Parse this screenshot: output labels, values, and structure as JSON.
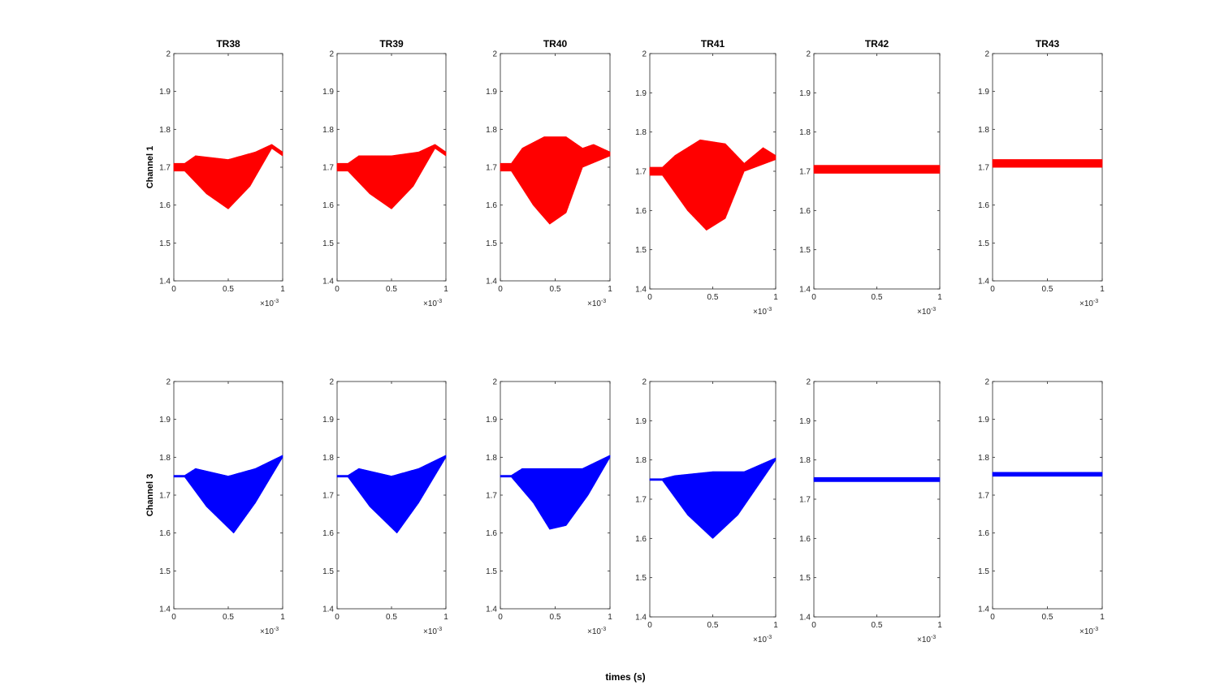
{
  "figure": {
    "xlabel": "times (s)",
    "row_labels": [
      "Channel 1",
      "Channel 3"
    ],
    "x_exponent_label": "×10",
    "x_exponent_power": "-3"
  },
  "chart_data": [
    {
      "type": "line",
      "title": "TR38",
      "ylabel": "Channel 1",
      "xlim": [
        0,
        1
      ],
      "ylim": [
        1.4,
        2
      ],
      "x_scale": "1e-3",
      "yticks": [
        1.4,
        1.5,
        1.6,
        1.7,
        1.8,
        1.9,
        2
      ],
      "xticks": [
        0,
        0.5,
        1
      ],
      "series": [
        {
          "color": "#ff0000",
          "baseline": [
            [
              0,
              1.7
            ],
            [
              0.1,
              1.7
            ],
            [
              0.35,
              1.68
            ],
            [
              0.5,
              1.66
            ],
            [
              0.75,
              1.7
            ],
            [
              0.9,
              1.76
            ],
            [
              1,
              1.73
            ]
          ],
          "upper": [
            [
              0,
              1.71
            ],
            [
              0.1,
              1.71
            ],
            [
              0.2,
              1.73
            ],
            [
              0.5,
              1.72
            ],
            [
              0.75,
              1.74
            ],
            [
              0.9,
              1.76
            ],
            [
              1,
              1.74
            ]
          ],
          "lower": [
            [
              0,
              1.69
            ],
            [
              0.1,
              1.69
            ],
            [
              0.3,
              1.63
            ],
            [
              0.5,
              1.59
            ],
            [
              0.7,
              1.65
            ],
            [
              0.9,
              1.75
            ],
            [
              1,
              1.73
            ]
          ]
        }
      ]
    },
    {
      "type": "line",
      "title": "TR39",
      "xlim": [
        0,
        1
      ],
      "ylim": [
        1.4,
        2
      ],
      "x_scale": "1e-3",
      "yticks": [
        1.4,
        1.5,
        1.6,
        1.7,
        1.8,
        1.9,
        2
      ],
      "xticks": [
        0,
        0.5,
        1
      ],
      "series": [
        {
          "color": "#ff0000",
          "baseline": [
            [
              0,
              1.7
            ],
            [
              0.1,
              1.7
            ],
            [
              0.35,
              1.68
            ],
            [
              0.5,
              1.66
            ],
            [
              0.75,
              1.7
            ],
            [
              0.9,
              1.76
            ],
            [
              1,
              1.73
            ]
          ],
          "upper": [
            [
              0,
              1.71
            ],
            [
              0.1,
              1.71
            ],
            [
              0.2,
              1.73
            ],
            [
              0.5,
              1.73
            ],
            [
              0.75,
              1.74
            ],
            [
              0.9,
              1.76
            ],
            [
              1,
              1.74
            ]
          ],
          "lower": [
            [
              0,
              1.69
            ],
            [
              0.1,
              1.69
            ],
            [
              0.3,
              1.63
            ],
            [
              0.5,
              1.59
            ],
            [
              0.7,
              1.65
            ],
            [
              0.9,
              1.75
            ],
            [
              1,
              1.73
            ]
          ]
        }
      ]
    },
    {
      "type": "line",
      "title": "TR40",
      "xlim": [
        0,
        1
      ],
      "ylim": [
        1.4,
        2
      ],
      "x_scale": "1e-3",
      "yticks": [
        1.4,
        1.5,
        1.6,
        1.7,
        1.8,
        1.9,
        2
      ],
      "xticks": [
        0,
        0.5,
        1
      ],
      "series": [
        {
          "color": "#ff0000",
          "baseline": [
            [
              0,
              1.7
            ],
            [
              0.1,
              1.7
            ],
            [
              0.35,
              1.66
            ],
            [
              0.5,
              1.66
            ],
            [
              0.65,
              1.72
            ],
            [
              0.8,
              1.75
            ],
            [
              1,
              1.73
            ]
          ],
          "upper": [
            [
              0,
              1.71
            ],
            [
              0.1,
              1.71
            ],
            [
              0.2,
              1.75
            ],
            [
              0.4,
              1.78
            ],
            [
              0.6,
              1.78
            ],
            [
              0.75,
              1.75
            ],
            [
              0.85,
              1.76
            ],
            [
              1,
              1.74
            ]
          ],
          "lower": [
            [
              0,
              1.69
            ],
            [
              0.1,
              1.69
            ],
            [
              0.3,
              1.6
            ],
            [
              0.45,
              1.55
            ],
            [
              0.6,
              1.58
            ],
            [
              0.75,
              1.7
            ],
            [
              1,
              1.73
            ]
          ]
        }
      ]
    },
    {
      "type": "line",
      "title": "TR41",
      "xlim": [
        0,
        1
      ],
      "ylim": [
        1.4,
        2
      ],
      "x_scale": "1e-3",
      "yticks": [
        1.4,
        1.5,
        1.6,
        1.7,
        1.8,
        1.9,
        2
      ],
      "xticks": [
        0,
        0.5,
        1
      ],
      "series": [
        {
          "color": "#ff0000",
          "baseline": [
            [
              0,
              1.7
            ],
            [
              0.1,
              1.7
            ],
            [
              0.35,
              1.66
            ],
            [
              0.5,
              1.65
            ],
            [
              0.65,
              1.71
            ],
            [
              0.85,
              1.75
            ],
            [
              1,
              1.73
            ]
          ],
          "upper": [
            [
              0,
              1.71
            ],
            [
              0.1,
              1.71
            ],
            [
              0.2,
              1.74
            ],
            [
              0.4,
              1.78
            ],
            [
              0.6,
              1.77
            ],
            [
              0.75,
              1.72
            ],
            [
              0.9,
              1.76
            ],
            [
              1,
              1.74
            ]
          ],
          "lower": [
            [
              0,
              1.69
            ],
            [
              0.1,
              1.69
            ],
            [
              0.3,
              1.6
            ],
            [
              0.45,
              1.55
            ],
            [
              0.6,
              1.58
            ],
            [
              0.75,
              1.7
            ],
            [
              1,
              1.73
            ]
          ]
        }
      ]
    },
    {
      "type": "line",
      "title": "TR42",
      "xlim": [
        0,
        1
      ],
      "ylim": [
        1.4,
        2
      ],
      "x_scale": "1e-3",
      "yticks": [
        1.4,
        1.5,
        1.6,
        1.7,
        1.8,
        1.9,
        2
      ],
      "xticks": [
        0,
        0.5,
        1
      ],
      "series": [
        {
          "color": "#ff0000",
          "baseline": [
            [
              0,
              1.705
            ],
            [
              1,
              1.705
            ]
          ],
          "upper": [
            [
              0,
              1.715
            ],
            [
              1,
              1.715
            ]
          ],
          "lower": [
            [
              0,
              1.695
            ],
            [
              1,
              1.695
            ]
          ]
        }
      ]
    },
    {
      "type": "line",
      "title": "TR43",
      "xlim": [
        0,
        1
      ],
      "ylim": [
        1.4,
        2
      ],
      "x_scale": "1e-3",
      "yticks": [
        1.4,
        1.5,
        1.6,
        1.7,
        1.8,
        1.9,
        2
      ],
      "xticks": [
        0,
        0.5,
        1
      ],
      "series": [
        {
          "color": "#ff0000",
          "baseline": [
            [
              0,
              1.71
            ],
            [
              1,
              1.71
            ]
          ],
          "upper": [
            [
              0,
              1.72
            ],
            [
              1,
              1.72
            ]
          ],
          "lower": [
            [
              0,
              1.7
            ],
            [
              1,
              1.7
            ]
          ]
        }
      ]
    },
    {
      "type": "line",
      "ylabel": "Channel 3",
      "xlim": [
        0,
        1
      ],
      "ylim": [
        1.4,
        2
      ],
      "x_scale": "1e-3",
      "yticks": [
        1.4,
        1.5,
        1.6,
        1.7,
        1.8,
        1.9,
        2
      ],
      "xticks": [
        0,
        0.5,
        1
      ],
      "series": [
        {
          "color": "#0000ff",
          "baseline": [
            [
              0,
              1.75
            ],
            [
              0.1,
              1.75
            ],
            [
              0.5,
              1.7
            ],
            [
              0.8,
              1.74
            ],
            [
              1,
              1.8
            ]
          ],
          "upper": [
            [
              0,
              1.752
            ],
            [
              0.1,
              1.752
            ],
            [
              0.2,
              1.77
            ],
            [
              0.5,
              1.75
            ],
            [
              0.75,
              1.77
            ],
            [
              1,
              1.805
            ]
          ],
          "lower": [
            [
              0,
              1.748
            ],
            [
              0.1,
              1.748
            ],
            [
              0.3,
              1.67
            ],
            [
              0.55,
              1.6
            ],
            [
              0.75,
              1.68
            ],
            [
              1,
              1.8
            ]
          ]
        }
      ]
    },
    {
      "type": "line",
      "xlim": [
        0,
        1
      ],
      "ylim": [
        1.4,
        2
      ],
      "x_scale": "1e-3",
      "yticks": [
        1.4,
        1.5,
        1.6,
        1.7,
        1.8,
        1.9,
        2
      ],
      "xticks": [
        0,
        0.5,
        1
      ],
      "series": [
        {
          "color": "#0000ff",
          "baseline": [
            [
              0,
              1.75
            ],
            [
              0.1,
              1.75
            ],
            [
              0.5,
              1.7
            ],
            [
              0.8,
              1.74
            ],
            [
              1,
              1.8
            ]
          ],
          "upper": [
            [
              0,
              1.752
            ],
            [
              0.1,
              1.752
            ],
            [
              0.2,
              1.77
            ],
            [
              0.5,
              1.75
            ],
            [
              0.75,
              1.77
            ],
            [
              1,
              1.805
            ]
          ],
          "lower": [
            [
              0,
              1.748
            ],
            [
              0.1,
              1.748
            ],
            [
              0.3,
              1.67
            ],
            [
              0.55,
              1.6
            ],
            [
              0.75,
              1.68
            ],
            [
              1,
              1.8
            ]
          ]
        }
      ]
    },
    {
      "type": "line",
      "xlim": [
        0,
        1
      ],
      "ylim": [
        1.4,
        2
      ],
      "x_scale": "1e-3",
      "yticks": [
        1.4,
        1.5,
        1.6,
        1.7,
        1.8,
        1.9,
        2
      ],
      "xticks": [
        0,
        0.5,
        1
      ],
      "series": [
        {
          "color": "#0000ff",
          "baseline": [
            [
              0,
              1.75
            ],
            [
              0.1,
              1.75
            ],
            [
              0.5,
              1.7
            ],
            [
              0.8,
              1.74
            ],
            [
              1,
              1.8
            ]
          ],
          "upper": [
            [
              0,
              1.752
            ],
            [
              0.1,
              1.752
            ],
            [
              0.2,
              1.77
            ],
            [
              0.5,
              1.77
            ],
            [
              0.75,
              1.77
            ],
            [
              1,
              1.805
            ]
          ],
          "lower": [
            [
              0,
              1.748
            ],
            [
              0.1,
              1.748
            ],
            [
              0.3,
              1.68
            ],
            [
              0.45,
              1.61
            ],
            [
              0.6,
              1.62
            ],
            [
              0.8,
              1.7
            ],
            [
              1,
              1.8
            ]
          ]
        }
      ]
    },
    {
      "type": "line",
      "xlim": [
        0,
        1
      ],
      "ylim": [
        1.4,
        2
      ],
      "x_scale": "1e-3",
      "yticks": [
        1.4,
        1.5,
        1.6,
        1.7,
        1.8,
        1.9,
        2
      ],
      "xticks": [
        0,
        0.5,
        1
      ],
      "series": [
        {
          "color": "#0000ff",
          "baseline": [
            [
              0,
              1.75
            ],
            [
              0.1,
              1.75
            ],
            [
              0.5,
              1.7
            ],
            [
              0.8,
              1.74
            ],
            [
              1,
              1.8
            ]
          ],
          "upper": [
            [
              0,
              1.752
            ],
            [
              0.1,
              1.752
            ],
            [
              0.2,
              1.76
            ],
            [
              0.5,
              1.77
            ],
            [
              0.75,
              1.77
            ],
            [
              1,
              1.805
            ]
          ],
          "lower": [
            [
              0,
              1.748
            ],
            [
              0.1,
              1.748
            ],
            [
              0.3,
              1.66
            ],
            [
              0.5,
              1.6
            ],
            [
              0.7,
              1.66
            ],
            [
              1,
              1.8
            ]
          ]
        }
      ]
    },
    {
      "type": "line",
      "xlim": [
        0,
        1
      ],
      "ylim": [
        1.4,
        2
      ],
      "x_scale": "1e-3",
      "yticks": [
        1.4,
        1.5,
        1.6,
        1.7,
        1.8,
        1.9,
        2
      ],
      "xticks": [
        0,
        0.5,
        1
      ],
      "series": [
        {
          "color": "#0000ff",
          "baseline": [
            [
              0,
              1.75
            ],
            [
              1,
              1.75
            ]
          ],
          "upper": [
            [
              0,
              1.755
            ],
            [
              1,
              1.755
            ]
          ],
          "lower": [
            [
              0,
              1.745
            ],
            [
              1,
              1.745
            ]
          ]
        }
      ]
    },
    {
      "type": "line",
      "xlim": [
        0,
        1
      ],
      "ylim": [
        1.4,
        2
      ],
      "x_scale": "1e-3",
      "yticks": [
        1.4,
        1.5,
        1.6,
        1.7,
        1.8,
        1.9,
        2
      ],
      "xticks": [
        0,
        0.5,
        1
      ],
      "series": [
        {
          "color": "#0000ff",
          "baseline": [
            [
              0,
              1.755
            ],
            [
              1,
              1.755
            ]
          ],
          "upper": [
            [
              0,
              1.76
            ],
            [
              1,
              1.76
            ]
          ],
          "lower": [
            [
              0,
              1.75
            ],
            [
              1,
              1.75
            ]
          ]
        }
      ]
    }
  ]
}
